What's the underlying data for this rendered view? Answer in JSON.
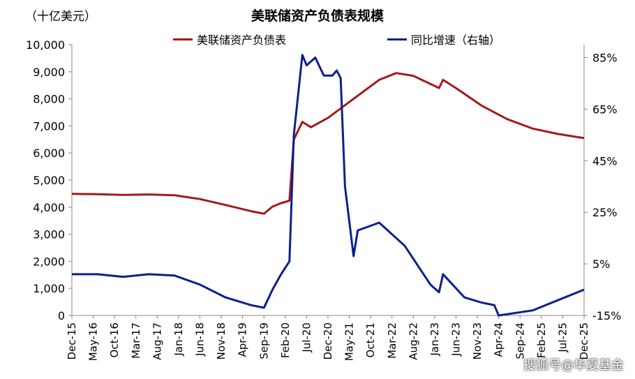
{
  "unit_label": "（十亿美元）",
  "watermark": "搜狐号@华夏基金",
  "colors": {
    "series1": "#a31a1a",
    "series2": "#0b1f8f"
  },
  "chart_data": {
    "type": "line",
    "title": "美联储资产负债表规模",
    "x_tick_labels": [
      "Dec-15",
      "May-16",
      "Oct-16",
      "Mar-17",
      "Aug-17",
      "Jan-18",
      "Jun-18",
      "Nov-18",
      "Apr-19",
      "Sep-19",
      "Feb-20",
      "Jul-20",
      "Dec-20",
      "May-21",
      "Oct-21",
      "Mar-22",
      "Aug-22",
      "Jan-23",
      "Jun-23",
      "Nov-23",
      "Apr-24",
      "Sep-24",
      "Feb-25",
      "Jul-25",
      "Dec-25"
    ],
    "y_left": {
      "ticks": [
        "0",
        "1,000",
        "2,000",
        "3,000",
        "4,000",
        "5,000",
        "6,000",
        "7,000",
        "8,000",
        "9,000",
        "10,000"
      ],
      "range": [
        0,
        10000
      ]
    },
    "y_right": {
      "ticks": [
        "-15%",
        "5%",
        "25%",
        "45%",
        "65%",
        "85%"
      ],
      "range": [
        -0.15,
        0.9
      ],
      "format": "percent"
    },
    "series": [
      {
        "name": "美联储资产负债表",
        "axis": "left",
        "points": [
          [
            "2015-12-01",
            4490
          ],
          [
            "2016-06-01",
            4480
          ],
          [
            "2016-12-01",
            4450
          ],
          [
            "2017-06-01",
            4470
          ],
          [
            "2017-12-01",
            4440
          ],
          [
            "2018-06-01",
            4300
          ],
          [
            "2018-12-01",
            4080
          ],
          [
            "2019-06-01",
            3850
          ],
          [
            "2019-09-01",
            3760
          ],
          [
            "2019-11-01",
            4020
          ],
          [
            "2020-01-01",
            4150
          ],
          [
            "2020-03-01",
            4240
          ],
          [
            "2020-04-01",
            6500
          ],
          [
            "2020-06-01",
            7150
          ],
          [
            "2020-08-01",
            6950
          ],
          [
            "2020-12-01",
            7300
          ],
          [
            "2021-06-01",
            8000
          ],
          [
            "2021-12-01",
            8700
          ],
          [
            "2022-04-01",
            8950
          ],
          [
            "2022-08-01",
            8850
          ],
          [
            "2023-02-01",
            8400
          ],
          [
            "2023-03-01",
            8700
          ],
          [
            "2023-06-01",
            8400
          ],
          [
            "2023-12-01",
            7750
          ],
          [
            "2024-06-01",
            7250
          ],
          [
            "2024-12-01",
            6900
          ],
          [
            "2025-06-01",
            6700
          ],
          [
            "2025-12-01",
            6550
          ]
        ]
      },
      {
        "name": "同比增速（右轴）",
        "axis": "right",
        "points": [
          [
            "2015-12-01",
            0.01
          ],
          [
            "2016-06-01",
            0.01
          ],
          [
            "2016-12-01",
            0.0
          ],
          [
            "2017-06-01",
            0.01
          ],
          [
            "2017-12-01",
            0.005
          ],
          [
            "2018-06-01",
            -0.03
          ],
          [
            "2018-12-01",
            -0.08
          ],
          [
            "2019-06-01",
            -0.11
          ],
          [
            "2019-09-01",
            -0.12
          ],
          [
            "2019-11-01",
            -0.05
          ],
          [
            "2020-01-01",
            0.01
          ],
          [
            "2020-03-01",
            0.06
          ],
          [
            "2020-04-01",
            0.55
          ],
          [
            "2020-06-01",
            0.86
          ],
          [
            "2020-07-01",
            0.82
          ],
          [
            "2020-09-01",
            0.85
          ],
          [
            "2020-11-01",
            0.78
          ],
          [
            "2021-01-01",
            0.78
          ],
          [
            "2021-02-01",
            0.8
          ],
          [
            "2021-03-01",
            0.77
          ],
          [
            "2021-04-01",
            0.35
          ],
          [
            "2021-06-01",
            0.08
          ],
          [
            "2021-07-01",
            0.18
          ],
          [
            "2021-12-01",
            0.21
          ],
          [
            "2022-06-01",
            0.12
          ],
          [
            "2022-12-01",
            -0.03
          ],
          [
            "2023-02-01",
            -0.06
          ],
          [
            "2023-03-01",
            0.01
          ],
          [
            "2023-08-01",
            -0.08
          ],
          [
            "2023-12-01",
            -0.1
          ],
          [
            "2024-03-01",
            -0.11
          ],
          [
            "2024-04-01",
            -0.15
          ],
          [
            "2024-12-01",
            -0.13
          ],
          [
            "2025-06-01",
            -0.09
          ],
          [
            "2025-12-01",
            -0.05
          ]
        ]
      }
    ]
  }
}
